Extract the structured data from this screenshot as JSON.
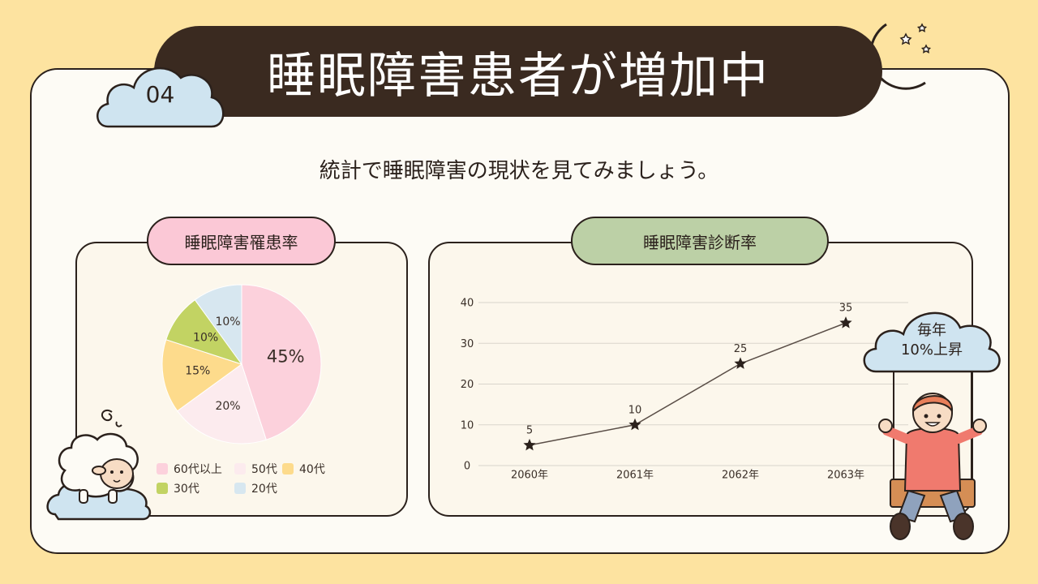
{
  "header": {
    "number": "04",
    "title": "睡眠障害患者が増加中"
  },
  "subtitle": "統計で睡眠障害の現状を見てみましょう。",
  "left_panel": {
    "label": "睡眠障害罹患率"
  },
  "right_panel": {
    "label": "睡眠障害診断率"
  },
  "badge": {
    "line1": "毎年",
    "line2": "10%上昇"
  },
  "colors": {
    "background": "#fde3a0",
    "title_bar": "#3a2a20",
    "pink": "#fbc8d6",
    "green": "#bcd0a6",
    "cloud": "#cfe4f0"
  },
  "chart_data": [
    {
      "type": "pie",
      "slices": [
        {
          "name": "60代以上",
          "value": 45,
          "label": "45%",
          "color": "#fcd1dc"
        },
        {
          "name": "50代",
          "value": 20,
          "label": "20%",
          "color": "#fcebee"
        },
        {
          "name": "40代",
          "value": 15,
          "label": "15%",
          "color": "#fddb8c"
        },
        {
          "name": "30代",
          "value": 10,
          "label": "10%",
          "color": "#c2d363"
        },
        {
          "name": "20代",
          "value": 10,
          "label": "10%",
          "color": "#d7e7f0"
        }
      ],
      "legend_placement": "bottom"
    },
    {
      "type": "line",
      "categories": [
        "2060年",
        "2061年",
        "2062年",
        "2063年"
      ],
      "series": [
        {
          "values": [
            5,
            10,
            25,
            35
          ]
        }
      ],
      "data_labels": [
        "5",
        "10",
        "25",
        "35"
      ],
      "y_ticks": [
        "0",
        "10",
        "20",
        "30",
        "40"
      ],
      "ylim": [
        0,
        40
      ],
      "grid": true,
      "marker": "star"
    }
  ]
}
